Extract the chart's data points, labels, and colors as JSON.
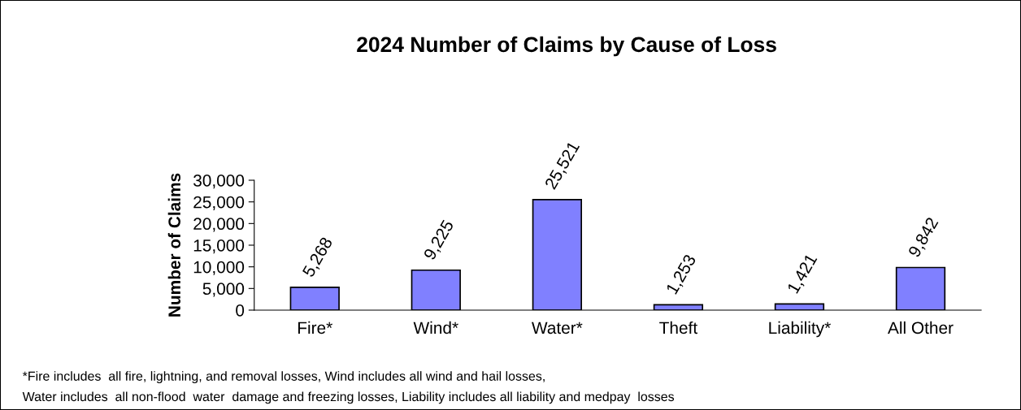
{
  "chart_data": {
    "type": "bar",
    "title": "2024 Number of Claims by Cause of Loss",
    "ylabel": "Number of Claims",
    "categories": [
      "Fire*",
      "Wind*",
      "Water*",
      "Theft",
      "Liability*",
      "All Other"
    ],
    "values": [
      5268,
      9225,
      25521,
      1253,
      1421,
      9842
    ],
    "color": "#8080ff",
    "ylim": [
      0,
      30000
    ],
    "yticks": [
      {
        "value": 0,
        "label": "0"
      },
      {
        "value": 5000,
        "label": "5,000"
      },
      {
        "value": 10000,
        "label": "10,000"
      },
      {
        "value": 15000,
        "label": "15,000"
      },
      {
        "value": 20000,
        "label": "20,000"
      },
      {
        "value": 25000,
        "label": "25,000"
      },
      {
        "value": 30000,
        "label": "30,000"
      }
    ],
    "value_labels": [
      "5,268",
      "9,225",
      "25,521",
      "1,253",
      "1,421",
      "9,842"
    ],
    "grid": false,
    "legend": false,
    "annotations": [
      "*Fire includes  all fire, lightning, and removal losses, Wind includes all wind and hail losses,",
      "Water includes  all non-flood  water  damage and freezing losses, Liability includes all liability and medpay  losses"
    ]
  }
}
